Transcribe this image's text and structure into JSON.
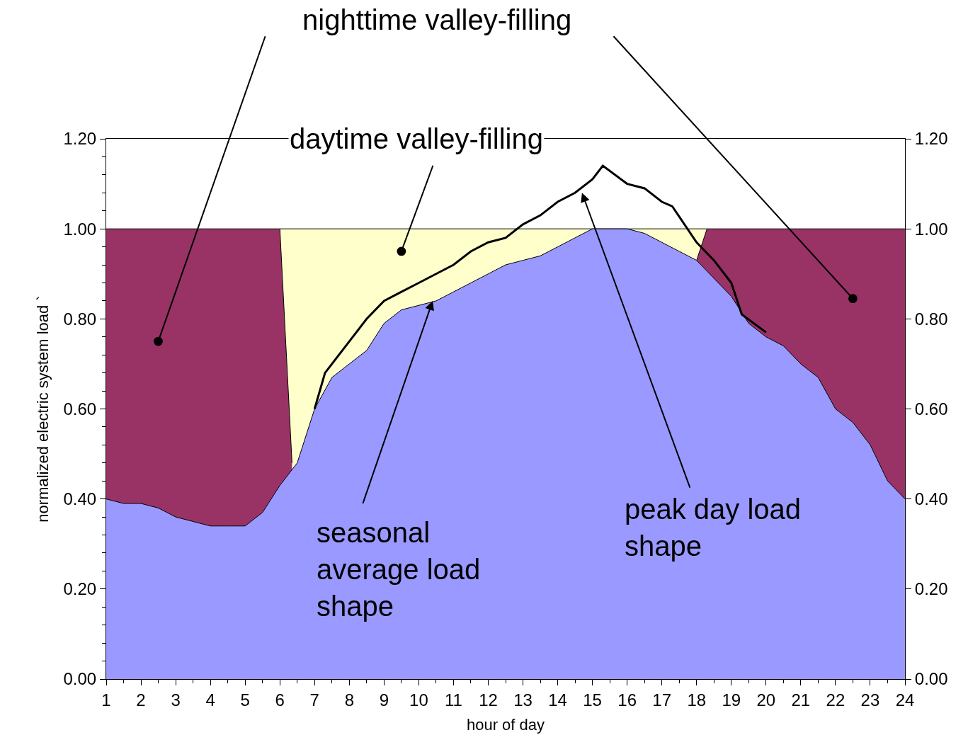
{
  "chart_data": {
    "type": "area",
    "xlabel": "hour of day",
    "ylabel": "normalized electric system load `",
    "xlim": [
      1,
      24
    ],
    "ylim": [
      0,
      1.2
    ],
    "y2lim": [
      0,
      1.2
    ],
    "xticks": [
      1,
      {
        "value": 1.5,
        "label": null
      },
      2,
      {
        "value": 2.5,
        "label": null
      },
      3,
      {
        "value": 3.5,
        "label": null
      },
      4,
      {
        "value": 4.5,
        "label": null
      },
      5,
      {
        "value": 5.5,
        "label": null
      },
      6,
      {
        "value": 6.5,
        "label": null
      },
      7,
      {
        "value": 7.5,
        "label": null
      },
      8,
      {
        "value": 8.5,
        "label": null
      },
      9,
      {
        "value": 9.5,
        "label": null
      },
      10,
      {
        "value": 10.5,
        "label": null
      },
      11,
      {
        "value": 11.5,
        "label": null
      },
      12,
      {
        "value": 12.5,
        "label": null
      },
      13,
      {
        "value": 13.5,
        "label": null
      },
      14,
      {
        "value": 14.5,
        "label": null
      },
      15,
      {
        "value": 15.5,
        "label": null
      },
      16,
      {
        "value": 16.5,
        "label": null
      },
      17,
      {
        "value": 17.5,
        "label": null
      },
      18,
      {
        "value": 18.5,
        "label": null
      },
      19,
      {
        "value": 19.5,
        "label": null
      },
      20,
      {
        "value": 20.5,
        "label": null
      },
      21,
      {
        "value": 21.5,
        "label": null
      },
      22,
      {
        "value": 22.5,
        "label": null
      },
      23,
      {
        "value": 23.5,
        "label": null
      },
      24
    ],
    "yticks": [
      {
        "value": 0,
        "label": "0.00"
      },
      {
        "value": 0.04,
        "label": null
      },
      {
        "value": 0.08,
        "label": null
      },
      {
        "value": 0.12,
        "label": null
      },
      {
        "value": 0.16,
        "label": null
      },
      {
        "value": 0.2,
        "label": "0.20"
      },
      {
        "value": 0.24,
        "label": null
      },
      {
        "value": 0.28,
        "label": null
      },
      {
        "value": 0.32,
        "label": null
      },
      {
        "value": 0.36,
        "label": null
      },
      {
        "value": 0.4,
        "label": "0.40"
      },
      {
        "value": 0.44,
        "label": null
      },
      {
        "value": 0.48,
        "label": null
      },
      {
        "value": 0.52,
        "label": null
      },
      {
        "value": 0.56,
        "label": null
      },
      {
        "value": 0.6,
        "label": "0.60"
      },
      {
        "value": 0.64,
        "label": null
      },
      {
        "value": 0.68,
        "label": null
      },
      {
        "value": 0.72,
        "label": null
      },
      {
        "value": 0.76,
        "label": null
      },
      {
        "value": 0.8,
        "label": "0.80"
      },
      {
        "value": 0.84,
        "label": null
      },
      {
        "value": 0.88,
        "label": null
      },
      {
        "value": 0.92,
        "label": null
      },
      {
        "value": 0.96,
        "label": null
      },
      {
        "value": 1.0,
        "label": "1.00"
      },
      {
        "value": 1.04,
        "label": null
      },
      {
        "value": 1.08,
        "label": null
      },
      {
        "value": 1.12,
        "label": null
      },
      {
        "value": 1.16,
        "label": null
      },
      {
        "value": 1.2,
        "label": "1.20"
      }
    ],
    "y2ticks": [
      {
        "value": 0,
        "label": "0.00"
      },
      {
        "value": 0.2,
        "label": "0.20"
      },
      {
        "value": 0.4,
        "label": "0.40"
      },
      {
        "value": 0.6,
        "label": "0.60"
      },
      {
        "value": 0.8,
        "label": "0.80"
      },
      {
        "value": 1.0,
        "label": "1.00"
      },
      {
        "value": 1.2,
        "label": "1.20"
      }
    ],
    "series": [
      {
        "color": "#ffffcc",
        "x": [
          6,
          18.3
        ],
        "values": [
          1.0,
          1.0
        ]
      },
      {
        "color": "#993366",
        "x": [
          1,
          6,
          6.35
        ],
        "values": [
          1.0,
          1.0,
          0.48
        ]
      },
      {
        "color": "#993366",
        "x": [
          18,
          18.3,
          24
        ],
        "values": [
          0.93,
          1.0,
          1.0
        ]
      },
      {
        "color": "#9999ff",
        "x": [
          1,
          1.5,
          2,
          2.5,
          3,
          3.5,
          4,
          4.5,
          5,
          5.5,
          6,
          6.5,
          7,
          7.5,
          8,
          8.5,
          9,
          9.5,
          10,
          10.5,
          11,
          11.5,
          12,
          12.5,
          13,
          13.5,
          14,
          14.5,
          15,
          15.5,
          16,
          16.5,
          17,
          17.5,
          18,
          18.5,
          19,
          19.5,
          20,
          20.5,
          21,
          21.5,
          22,
          22.5,
          23,
          23.5,
          24
        ],
        "values": [
          0.4,
          0.39,
          0.39,
          0.38,
          0.36,
          0.35,
          0.34,
          0.34,
          0.34,
          0.37,
          0.43,
          0.48,
          0.6,
          0.67,
          0.7,
          0.73,
          0.79,
          0.82,
          0.83,
          0.84,
          0.86,
          0.88,
          0.9,
          0.92,
          0.93,
          0.94,
          0.96,
          0.98,
          1.0,
          1.0,
          1.0,
          0.99,
          0.97,
          0.95,
          0.93,
          0.89,
          0.85,
          0.79,
          0.76,
          0.74,
          0.7,
          0.67,
          0.6,
          0.57,
          0.52,
          0.44,
          0.4
        ]
      },
      {
        "type": "line",
        "color": "#000000",
        "x": [
          7,
          7.3,
          8,
          8.5,
          9,
          9.5,
          10,
          10.5,
          11,
          11.5,
          12,
          12.5,
          13,
          13.5,
          14,
          14.5,
          15,
          15.3,
          16,
          16.5,
          17,
          17.3,
          18,
          18.5,
          19,
          19.3,
          20
        ],
        "values": [
          0.6,
          0.68,
          0.75,
          0.8,
          0.84,
          0.86,
          0.88,
          0.9,
          0.92,
          0.95,
          0.97,
          0.98,
          1.01,
          1.03,
          1.06,
          1.08,
          1.11,
          1.14,
          1.1,
          1.09,
          1.06,
          1.05,
          0.97,
          0.93,
          0.88,
          0.81,
          0.77
        ]
      }
    ],
    "annotations": [
      "nighttime valley-filling",
      {
        "text": "daytime valley-filling",
        "x": 9.5,
        "y": 0.95
      },
      {
        "text": "seasonal\naverage load\nshape",
        "x": 10.4,
        "y": 0.84
      },
      {
        "text": "peak day load\nshape",
        "x": 14.7,
        "y": 1.08
      }
    ]
  }
}
